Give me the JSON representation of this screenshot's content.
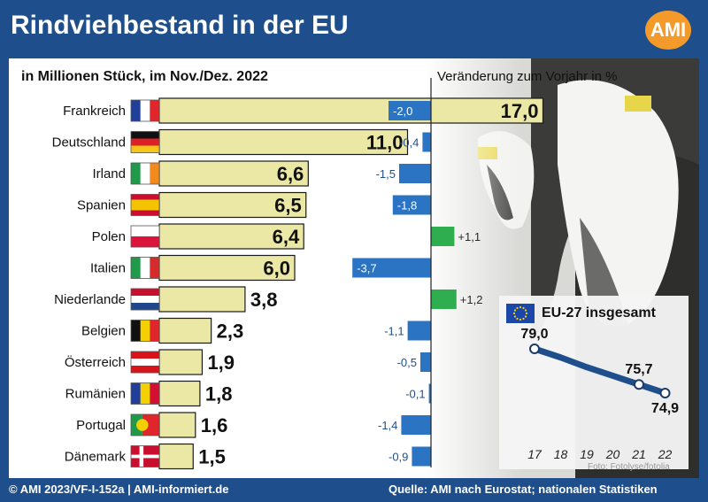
{
  "title": "Rindviehbestand in der EU",
  "logo": "AMI",
  "subtitle": "in Millionen Stück, im Nov./Dez. 2022",
  "change_title": "Veränderung zum Vorjahr in %",
  "photo_credit": "Foto: Fotolyse/fotolia",
  "footer": {
    "left": "© AMI 2023/VF-I-152a | AMI-informiert.de",
    "right": "Quelle: AMI nach Eurostat; nationalen Statistiken"
  },
  "colors": {
    "bar_fill": "#ebe8a6",
    "bar_stroke": "#1a1a1a",
    "negative": "#2b73c3",
    "positive": "#2fae4f",
    "brand": "#1e4f8c",
    "inset_line": "#1e4f8c"
  },
  "chart_data": [
    {
      "type": "bar",
      "orientation": "horizontal",
      "categories": [
        "Frankreich",
        "Deutschland",
        "Irland",
        "Spanien",
        "Polen",
        "Italien",
        "Niederlande",
        "Belgien",
        "Österreich",
        "Rumänien",
        "Portugal",
        "Dänemark"
      ],
      "values": [
        17.0,
        11.0,
        6.6,
        6.5,
        6.4,
        6.0,
        3.8,
        2.3,
        1.9,
        1.8,
        1.6,
        1.5
      ],
      "value_labels": [
        "17,0",
        "11,0",
        "6,6",
        "6,5",
        "6,4",
        "6,0",
        "3,8",
        "2,3",
        "1,9",
        "1,8",
        "1,6",
        "1,5"
      ],
      "flags": [
        "flag-france-icon",
        "flag-germany-icon",
        "flag-ireland-icon",
        "flag-spain-icon",
        "flag-poland-icon",
        "flag-italy-icon",
        "flag-netherlands-icon",
        "flag-belgium-icon",
        "flag-austria-icon",
        "flag-romania-icon",
        "flag-portugal-icon",
        "flag-denmark-icon"
      ],
      "title": "in Millionen Stück, im Nov./Dez. 2022"
    },
    {
      "type": "bar",
      "orientation": "horizontal",
      "categories": [
        "Frankreich",
        "Deutschland",
        "Irland",
        "Spanien",
        "Polen",
        "Italien",
        "Niederlande",
        "Belgien",
        "Österreich",
        "Rumänien",
        "Portugal",
        "Dänemark"
      ],
      "values": [
        -2.0,
        -0.4,
        -1.5,
        -1.8,
        1.1,
        -3.7,
        1.2,
        -1.1,
        -0.5,
        -0.1,
        -1.4,
        -0.9
      ],
      "value_labels": [
        "-2,0",
        "-0,4",
        "-1,5",
        "-1,8",
        "+1,1",
        "-3,7",
        "+1,2",
        "-1,1",
        "-0,5",
        "-0,1",
        "-1,4",
        "-0,9"
      ],
      "title": "Veränderung zum Vorjahr in %"
    },
    {
      "type": "line",
      "title": "EU-27 insgesamt",
      "x": [
        "17",
        "18",
        "19",
        "20",
        "21",
        "22"
      ],
      "y": [
        79.0,
        null,
        null,
        null,
        75.7,
        74.9
      ],
      "y_interpolated": [
        79.0,
        78.2,
        77.3,
        76.5,
        75.7,
        74.9
      ],
      "point_labels": {
        "17": "79,0",
        "21": "75,7",
        "22": "74,9"
      }
    }
  ]
}
